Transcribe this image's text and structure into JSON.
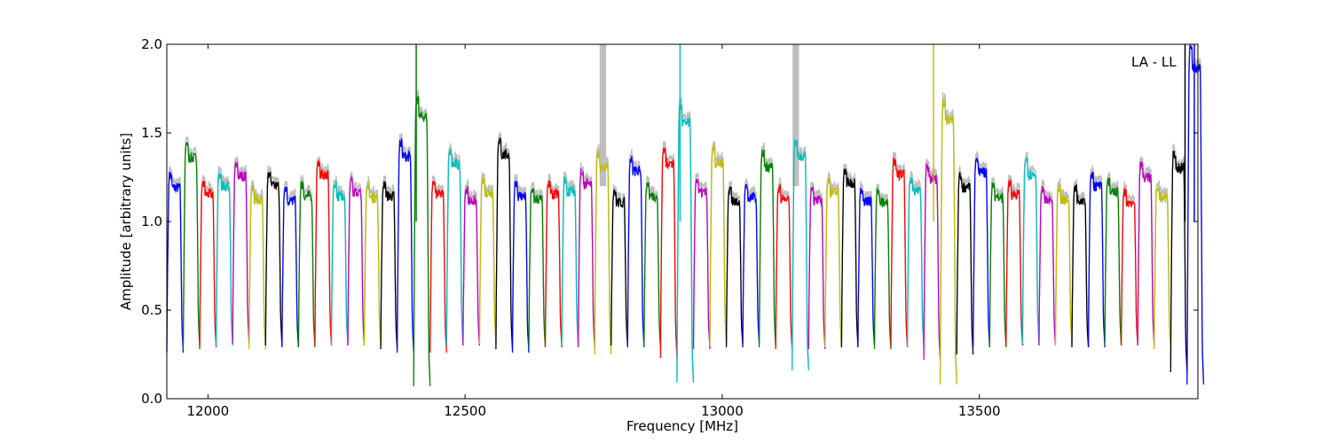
{
  "chart_data": {
    "type": "line",
    "annotation": "LA - LL",
    "xlabel": "Frequency [MHz]",
    "ylabel": "Amplitude [arbitrary units]",
    "xlim": [
      11920,
      13925
    ],
    "ylim": [
      0,
      2.0
    ],
    "xticks": [
      12000,
      12500,
      13000,
      13500
    ],
    "xtick_labels": [
      "12000",
      "12500",
      "13000",
      "13500"
    ],
    "yticks": [
      0.0,
      0.5,
      1.0,
      1.5,
      2.0
    ],
    "ytick_labels": [
      "0.0",
      "0.5",
      "1.0",
      "1.5",
      "2.0"
    ],
    "grid": false,
    "palette": [
      "#0000ff",
      "#008000",
      "#ff0000",
      "#00bfbf",
      "#bf00bf",
      "#bfbf00",
      "#000000"
    ],
    "background_trace_color": "#bebebe",
    "channel_width_mhz": 32,
    "channels": [
      {
        "start": 11920,
        "color": "#0000ff",
        "peak": 1.28,
        "min": 0.26
      },
      {
        "start": 11952,
        "color": "#008000",
        "peak": 1.46,
        "min": 0.28
      },
      {
        "start": 11984,
        "color": "#ff0000",
        "peak": 1.24,
        "min": 0.29
      },
      {
        "start": 12016,
        "color": "#00bfbf",
        "peak": 1.29,
        "min": 0.3
      },
      {
        "start": 12048,
        "color": "#bf00bf",
        "peak": 1.35,
        "min": 0.31
      },
      {
        "start": 12080,
        "color": "#bfbf00",
        "peak": 1.21,
        "min": 0.28
      },
      {
        "start": 12112,
        "color": "#000000",
        "peak": 1.29,
        "min": 0.3
      },
      {
        "start": 12144,
        "color": "#0000ff",
        "peak": 1.2,
        "min": 0.29
      },
      {
        "start": 12176,
        "color": "#008000",
        "peak": 1.23,
        "min": 0.29
      },
      {
        "start": 12208,
        "color": "#ff0000",
        "peak": 1.36,
        "min": 0.3
      },
      {
        "start": 12240,
        "color": "#00bfbf",
        "peak": 1.23,
        "min": 0.3
      },
      {
        "start": 12272,
        "color": "#bf00bf",
        "peak": 1.25,
        "min": 0.3
      },
      {
        "start": 12304,
        "color": "#bfbf00",
        "peak": 1.22,
        "min": 0.3
      },
      {
        "start": 12336,
        "color": "#000000",
        "peak": 1.23,
        "min": 0.28
      },
      {
        "start": 12368,
        "color": "#0000ff",
        "peak": 1.47,
        "min": 0.26
      },
      {
        "start": 12400,
        "color": "#008000",
        "peak": 1.71,
        "min": 0.07
      },
      {
        "start": 12432,
        "color": "#ff0000",
        "peak": 1.24,
        "min": 0.26
      },
      {
        "start": 12464,
        "color": "#00bfbf",
        "peak": 1.42,
        "min": 0.3
      },
      {
        "start": 12496,
        "color": "#bf00bf",
        "peak": 1.2,
        "min": 0.3
      },
      {
        "start": 12528,
        "color": "#bfbf00",
        "peak": 1.25,
        "min": 0.31
      },
      {
        "start": 12560,
        "color": "#000000",
        "peak": 1.48,
        "min": 0.28
      },
      {
        "start": 12592,
        "color": "#0000ff",
        "peak": 1.23,
        "min": 0.26
      },
      {
        "start": 12624,
        "color": "#008000",
        "peak": 1.21,
        "min": 0.29
      },
      {
        "start": 12656,
        "color": "#ff0000",
        "peak": 1.24,
        "min": 0.29
      },
      {
        "start": 12688,
        "color": "#00bfbf",
        "peak": 1.26,
        "min": 0.3
      },
      {
        "start": 12720,
        "color": "#bf00bf",
        "peak": 1.3,
        "min": 0.29
      },
      {
        "start": 12752,
        "color": "#bfbf00",
        "peak": 1.4,
        "min": 0.25
      },
      {
        "start": 12784,
        "color": "#000000",
        "peak": 1.19,
        "min": 0.3
      },
      {
        "start": 12816,
        "color": "#0000ff",
        "peak": 1.38,
        "min": 0.29
      },
      {
        "start": 12848,
        "color": "#008000",
        "peak": 1.23,
        "min": 0.29
      },
      {
        "start": 12880,
        "color": "#ff0000",
        "peak": 1.43,
        "min": 0.23
      },
      {
        "start": 12912,
        "color": "#00bfbf",
        "peak": 1.67,
        "min": 0.09
      },
      {
        "start": 12944,
        "color": "#bf00bf",
        "peak": 1.25,
        "min": 0.28
      },
      {
        "start": 12976,
        "color": "#bfbf00",
        "peak": 1.43,
        "min": 0.3
      },
      {
        "start": 13008,
        "color": "#000000",
        "peak": 1.2,
        "min": 0.29
      },
      {
        "start": 13040,
        "color": "#0000ff",
        "peak": 1.22,
        "min": 0.31
      },
      {
        "start": 13072,
        "color": "#008000",
        "peak": 1.41,
        "min": 0.29
      },
      {
        "start": 13104,
        "color": "#ff0000",
        "peak": 1.21,
        "min": 0.28
      },
      {
        "start": 13136,
        "color": "#00bfbf",
        "peak": 1.47,
        "min": 0.16
      },
      {
        "start": 13168,
        "color": "#bf00bf",
        "peak": 1.2,
        "min": 0.28
      },
      {
        "start": 13200,
        "color": "#bfbf00",
        "peak": 1.25,
        "min": 0.29
      },
      {
        "start": 13232,
        "color": "#000000",
        "peak": 1.31,
        "min": 0.29
      },
      {
        "start": 13264,
        "color": "#0000ff",
        "peak": 1.2,
        "min": 0.3
      },
      {
        "start": 13296,
        "color": "#008000",
        "peak": 1.19,
        "min": 0.28
      },
      {
        "start": 13328,
        "color": "#ff0000",
        "peak": 1.36,
        "min": 0.29
      },
      {
        "start": 13360,
        "color": "#00bfbf",
        "peak": 1.26,
        "min": 0.29
      },
      {
        "start": 13392,
        "color": "#bf00bf",
        "peak": 1.33,
        "min": 0.22
      },
      {
        "start": 13424,
        "color": "#bfbf00",
        "peak": 1.69,
        "min": 0.08
      },
      {
        "start": 13456,
        "color": "#000000",
        "peak": 1.28,
        "min": 0.25
      },
      {
        "start": 13488,
        "color": "#0000ff",
        "peak": 1.37,
        "min": 0.29
      },
      {
        "start": 13520,
        "color": "#008000",
        "peak": 1.22,
        "min": 0.29
      },
      {
        "start": 13552,
        "color": "#ff0000",
        "peak": 1.24,
        "min": 0.3
      },
      {
        "start": 13584,
        "color": "#00bfbf",
        "peak": 1.36,
        "min": 0.31
      },
      {
        "start": 13616,
        "color": "#bf00bf",
        "peak": 1.2,
        "min": 0.3
      },
      {
        "start": 13648,
        "color": "#bfbf00",
        "peak": 1.21,
        "min": 0.3
      },
      {
        "start": 13680,
        "color": "#000000",
        "peak": 1.21,
        "min": 0.29
      },
      {
        "start": 13712,
        "color": "#0000ff",
        "peak": 1.29,
        "min": 0.29
      },
      {
        "start": 13744,
        "color": "#008000",
        "peak": 1.25,
        "min": 0.3
      },
      {
        "start": 13776,
        "color": "#ff0000",
        "peak": 1.19,
        "min": 0.3
      },
      {
        "start": 13808,
        "color": "#bf00bf",
        "peak": 1.34,
        "min": 0.3
      },
      {
        "start": 13840,
        "color": "#bfbf00",
        "peak": 1.22,
        "min": 0.28
      },
      {
        "start": 13872,
        "color": "#000000",
        "peak": 1.4,
        "min": 0.15
      },
      {
        "start": 13904,
        "color": "#0000ff",
        "peak": 2.0,
        "min": 0.08
      }
    ],
    "spikes": [
      {
        "x": 12405,
        "y": 2.0,
        "color": "#008000"
      },
      {
        "x": 12918,
        "y": 2.0,
        "color": "#00bfbf"
      },
      {
        "x": 13411,
        "y": 2.0,
        "color": "#bfbf00"
      },
      {
        "x": 13900,
        "y": 2.0,
        "color": "#000000"
      },
      {
        "x": 13918,
        "y": 2.0,
        "color": "#0000ff"
      }
    ],
    "background_spikes": [
      {
        "x": 12768,
        "y": 2.0
      },
      {
        "x": 13143,
        "y": 2.0
      }
    ]
  }
}
